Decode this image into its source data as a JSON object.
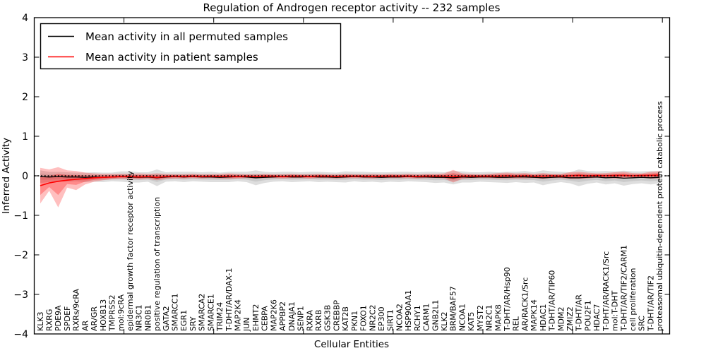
{
  "chart_data": {
    "type": "line",
    "title": "Regulation of Androgen receptor activity -- 232 samples",
    "xlabel": "Cellular Entities",
    "ylabel": "Inferred Activity",
    "ylim": [
      -4,
      4
    ],
    "yticks": [
      4,
      3,
      2,
      1,
      0,
      -1,
      -2,
      -3,
      -4
    ],
    "ytick_labels": [
      "4",
      "3",
      "2",
      "1",
      "0",
      "−1",
      "−2",
      "−3",
      "−4"
    ],
    "x_major_tick_every": 10,
    "n_points": 70,
    "grid": false,
    "legend_position": "upper left",
    "zero_line": 0,
    "colors": {
      "permuted_line": "#000000",
      "patient_line": "#ff0000",
      "permuted_band": "rgba(0,0,0,0.13)",
      "permuted_band_inner": "rgba(0,0,0,0.09)",
      "patient_band": "rgba(255,0,0,0.25)",
      "patient_band_inner": "rgba(255,0,0,0.28)"
    },
    "categories": [
      "KLK3",
      "RXRG",
      "PDE9A",
      "SPDEF",
      "RXRs/9cRA",
      "AR",
      "AR/GR",
      "HOXB13",
      "TMPRSS2",
      "mol:9cRA",
      "epidermal growth factor receptor activity",
      "NR3C1",
      "NR0B1",
      "positive regulation of transcription",
      "GATA2",
      "SMARCC1",
      "EGR1",
      "SRY",
      "SMARCA2",
      "SMARCE1",
      "TRIM24",
      "T-DHT/AR/DAX-1",
      "MAP2K4",
      "JUN",
      "EHMT2",
      "CEBPA",
      "MAP2K6",
      "APPBP2",
      "DNAJA1",
      "SENP1",
      "RXRA",
      "RXRB",
      "GSK3B",
      "CREBBP",
      "KAT2B",
      "PKN1",
      "FOXO1",
      "NR2C2",
      "EP300",
      "SIRT1",
      "NCOA2",
      "HSP90AA1",
      "RCHY1",
      "CARM1",
      "GNB2L1",
      "KLK2",
      "BRM/BAF57",
      "NCOA1",
      "KAT5",
      "MYST2",
      "NR2C1",
      "MAPK8",
      "T-DHT/AR/Hsp90",
      "REL",
      "AR/RACK1/Src",
      "MAPK14",
      "HDAC1",
      "T-DHT/AR/TIP60",
      "MDM2",
      "ZMIZ2",
      "T-DHT/AR",
      "POU2F1",
      "HDAC7",
      "T-DHT/AR/RACK1/Src",
      "mol:T-DHT",
      "T-DHT/AR/TIF2/CARM1",
      "cell proliferation",
      "SRC",
      "T-DHT/AR/TIF2",
      "proteasomal ubiquitin-dependent protein catabolic process"
    ],
    "series": [
      {
        "name": "Mean activity in all permuted samples",
        "color": "#000000",
        "mean": [
          -0.02,
          -0.03,
          -0.02,
          -0.03,
          -0.03,
          -0.04,
          -0.03,
          -0.04,
          -0.03,
          -0.02,
          -0.03,
          -0.04,
          -0.03,
          -0.05,
          -0.03,
          -0.02,
          -0.03,
          -0.02,
          -0.03,
          -0.03,
          -0.04,
          -0.03,
          -0.02,
          -0.03,
          -0.05,
          -0.04,
          -0.03,
          -0.02,
          -0.03,
          -0.03,
          -0.02,
          -0.03,
          -0.03,
          -0.04,
          -0.03,
          -0.02,
          -0.03,
          -0.03,
          -0.04,
          -0.03,
          -0.03,
          -0.02,
          -0.03,
          -0.03,
          -0.04,
          -0.04,
          -0.05,
          -0.03,
          -0.04,
          -0.03,
          -0.03,
          -0.04,
          -0.04,
          -0.03,
          -0.03,
          -0.04,
          -0.05,
          -0.04,
          -0.03,
          -0.05,
          -0.05,
          -0.04,
          -0.03,
          -0.05,
          -0.04,
          -0.06,
          -0.05,
          -0.04,
          -0.05,
          -0.04
        ],
        "upper": [
          0.14,
          0.1,
          0.1,
          0.09,
          0.08,
          0.08,
          0.09,
          0.08,
          0.08,
          0.11,
          0.11,
          0.09,
          0.09,
          0.16,
          0.09,
          0.1,
          0.1,
          0.1,
          0.09,
          0.1,
          0.08,
          0.1,
          0.1,
          0.1,
          0.14,
          0.1,
          0.09,
          0.1,
          0.1,
          0.09,
          0.1,
          0.1,
          0.09,
          0.08,
          0.11,
          0.1,
          0.1,
          0.09,
          0.09,
          0.09,
          0.1,
          0.1,
          0.09,
          0.1,
          0.1,
          0.09,
          0.12,
          0.11,
          0.09,
          0.09,
          0.1,
          0.09,
          0.1,
          0.1,
          0.12,
          0.09,
          0.14,
          0.11,
          0.1,
          0.09,
          0.16,
          0.12,
          0.11,
          0.12,
          0.11,
          0.13,
          0.11,
          0.11,
          0.12,
          0.11
        ],
        "lower": [
          -0.18,
          -0.16,
          -0.14,
          -0.15,
          -0.14,
          -0.16,
          -0.15,
          -0.16,
          -0.14,
          -0.15,
          -0.17,
          -0.17,
          -0.15,
          -0.26,
          -0.15,
          -0.14,
          -0.16,
          -0.14,
          -0.15,
          -0.16,
          -0.16,
          -0.16,
          -0.14,
          -0.16,
          -0.24,
          -0.18,
          -0.15,
          -0.14,
          -0.16,
          -0.15,
          -0.14,
          -0.16,
          -0.15,
          -0.16,
          -0.17,
          -0.14,
          -0.16,
          -0.15,
          -0.17,
          -0.15,
          -0.16,
          -0.14,
          -0.15,
          -0.16,
          -0.18,
          -0.17,
          -0.22,
          -0.17,
          -0.17,
          -0.15,
          -0.16,
          -0.17,
          -0.18,
          -0.16,
          -0.18,
          -0.17,
          -0.24,
          -0.19,
          -0.16,
          -0.19,
          -0.26,
          -0.2,
          -0.17,
          -0.22,
          -0.19,
          -0.25,
          -0.21,
          -0.19,
          -0.22,
          -0.19
        ]
      },
      {
        "name": "Mean activity in patient samples",
        "color": "#ff0000",
        "mean": [
          -0.25,
          -0.18,
          -0.14,
          -0.11,
          -0.09,
          -0.07,
          -0.05,
          -0.04,
          -0.03,
          -0.02,
          -0.02,
          -0.03,
          -0.02,
          -0.04,
          -0.02,
          -0.01,
          -0.02,
          -0.01,
          -0.02,
          -0.01,
          -0.02,
          -0.01,
          -0.02,
          -0.01,
          -0.02,
          -0.01,
          -0.01,
          -0.02,
          -0.01,
          -0.01,
          -0.02,
          -0.01,
          -0.01,
          -0.02,
          -0.01,
          -0.01,
          -0.01,
          -0.02,
          -0.01,
          -0.01,
          -0.01,
          -0.01,
          -0.02,
          -0.01,
          -0.01,
          -0.01,
          -0.02,
          -0.01,
          -0.01,
          -0.01,
          -0.01,
          -0.01,
          0.0,
          -0.01,
          0.0,
          -0.01,
          -0.01,
          0.0,
          -0.01,
          0.0,
          0.01,
          0.0,
          0.01,
          0.0,
          0.01,
          0.01,
          0.0,
          0.01,
          0.01,
          0.02
        ],
        "upper": [
          0.2,
          0.16,
          0.22,
          0.14,
          0.12,
          0.08,
          0.06,
          0.05,
          0.05,
          0.05,
          0.05,
          0.06,
          0.05,
          0.06,
          0.05,
          0.04,
          0.04,
          0.05,
          0.04,
          0.04,
          0.05,
          0.06,
          0.05,
          0.04,
          0.04,
          0.05,
          0.04,
          0.04,
          0.05,
          0.04,
          0.04,
          0.05,
          0.04,
          0.04,
          0.05,
          0.04,
          0.04,
          0.05,
          0.04,
          0.05,
          0.04,
          0.05,
          0.04,
          0.05,
          0.05,
          0.06,
          0.15,
          0.06,
          0.05,
          0.04,
          0.05,
          0.07,
          0.08,
          0.06,
          0.07,
          0.05,
          0.07,
          0.05,
          0.05,
          0.09,
          0.1,
          0.08,
          0.06,
          0.07,
          0.09,
          0.1,
          0.07,
          0.06,
          0.1,
          0.12
        ],
        "lower": [
          -0.7,
          -0.38,
          -0.8,
          -0.3,
          -0.36,
          -0.22,
          -0.15,
          -0.11,
          -0.09,
          -0.08,
          -0.08,
          -0.09,
          -0.08,
          -0.11,
          -0.08,
          -0.07,
          -0.07,
          -0.06,
          -0.07,
          -0.06,
          -0.07,
          -0.08,
          -0.07,
          -0.06,
          -0.07,
          -0.06,
          -0.06,
          -0.07,
          -0.06,
          -0.06,
          -0.07,
          -0.06,
          -0.06,
          -0.07,
          -0.06,
          -0.06,
          -0.06,
          -0.07,
          -0.06,
          -0.06,
          -0.06,
          -0.06,
          -0.07,
          -0.06,
          -0.06,
          -0.07,
          -0.17,
          -0.08,
          -0.06,
          -0.06,
          -0.06,
          -0.07,
          -0.07,
          -0.07,
          -0.07,
          -0.06,
          -0.08,
          -0.06,
          -0.06,
          -0.08,
          -0.08,
          -0.07,
          -0.05,
          -0.06,
          -0.07,
          -0.07,
          -0.06,
          -0.05,
          -0.07,
          -0.07
        ]
      }
    ]
  }
}
